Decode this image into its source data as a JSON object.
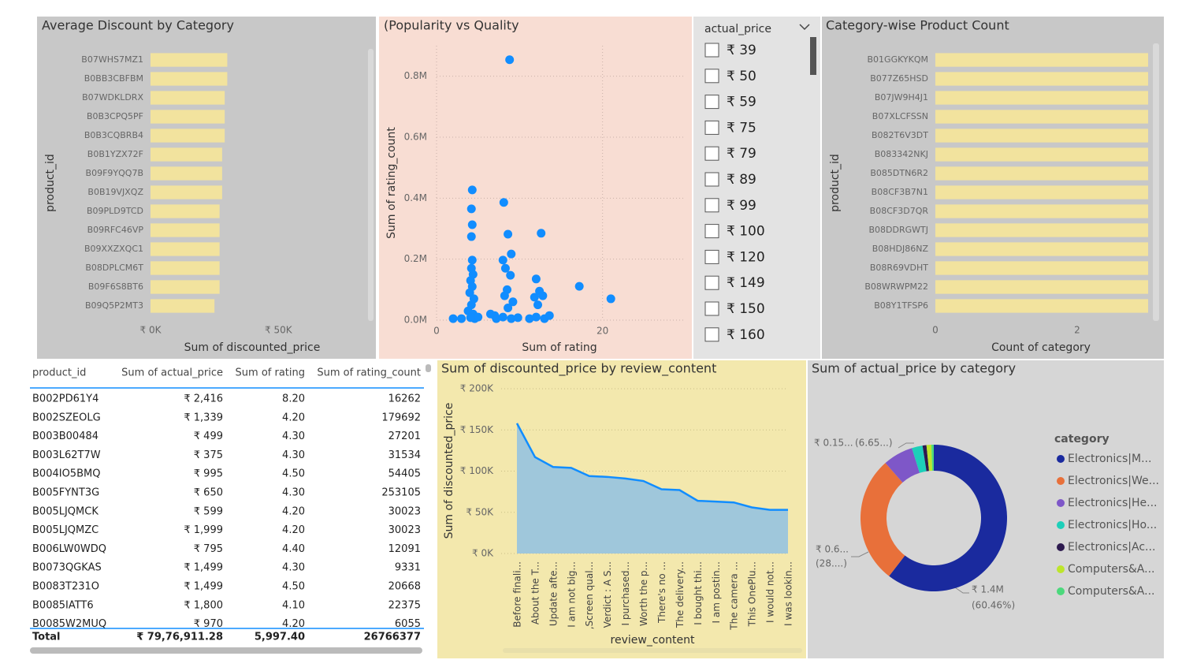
{
  "chart_data": [
    {
      "type": "bar",
      "orientation": "horizontal",
      "title": "Average Discount by Category",
      "categories": [
        "B07WHS7MZ1",
        "B0BB3CBFBM",
        "B07WDKLDRX",
        "B0B3CPQ5PF",
        "B0B3CQBRB4",
        "B0B1YZX72F",
        "B09F9YQQ7B",
        "B0B19VJXQZ",
        "B09PLD9TCD",
        "B09RFC46VP",
        "B09XXZXQC1",
        "B08DPLCM6T",
        "B09F6S8BT6",
        "B09Q5P2MT3"
      ],
      "values": [
        30000,
        30000,
        29000,
        29000,
        29000,
        28000,
        28000,
        28000,
        27000,
        27000,
        27000,
        27000,
        27000,
        25000
      ],
      "color": "#f2e39e",
      "xlim": [
        0,
        85000
      ],
      "xticks": [
        {
          "value": 0,
          "label": "₹ 0K"
        },
        {
          "value": 50000,
          "label": "₹ 50K"
        }
      ],
      "xlabel": "Sum of discounted_price",
      "ylabel": "product_id",
      "grid": false
    },
    {
      "type": "scatter",
      "title": "(Popularity vs Quality",
      "x": [
        8.8,
        4.3,
        4.2,
        8.1,
        4.3,
        8.6,
        12.6,
        4.2,
        9.0,
        8.0,
        4.3,
        17.2,
        21.0,
        12.0,
        8.9,
        4.2,
        4.4,
        4.1,
        8.3,
        12.4,
        12.8,
        11.8,
        8.5,
        8.2,
        4.3,
        4.0,
        4.5,
        4.2,
        3.8,
        4.4,
        2.0,
        3.0,
        4.6,
        5.0,
        4.1,
        7.2,
        8.0,
        9.0,
        9.8,
        8.6,
        9.2,
        7.0,
        11.2,
        12.0,
        13.0,
        13.6,
        12.2,
        6.5
      ],
      "values": [
        854000,
        427000,
        365000,
        386000,
        313000,
        282000,
        285000,
        274000,
        217000,
        197000,
        197000,
        111000,
        70000,
        135000,
        147000,
        170000,
        150000,
        130000,
        170000,
        95000,
        80000,
        75000,
        100000,
        80000,
        110000,
        90000,
        70000,
        50000,
        30000,
        20000,
        5000,
        5000,
        5000,
        10000,
        8000,
        5000,
        10000,
        5000,
        8000,
        40000,
        60000,
        15000,
        5000,
        10000,
        5000,
        15000,
        50000,
        20000
      ],
      "color": "#118dff",
      "xlim": [
        0,
        30
      ],
      "xticks": [
        0,
        20
      ],
      "ylim": [
        0,
        900000
      ],
      "yticks": [
        {
          "value": 0,
          "label": "0.0M"
        },
        {
          "value": 200000,
          "label": "0.2M"
        },
        {
          "value": 400000,
          "label": "0.4M"
        },
        {
          "value": 600000,
          "label": "0.6M"
        },
        {
          "value": 800000,
          "label": "0.8M"
        }
      ],
      "xlabel": "Sum of rating",
      "ylabel": "Sum of rating_count",
      "grid": true
    },
    {
      "type": "bar",
      "orientation": "horizontal",
      "title": "Category-wise Product Count",
      "categories": [
        "B01GGKYKQM",
        "B077Z65HSD",
        "B07JW9H4J1",
        "B07XLCFSSN",
        "B082T6V3DT",
        "B083342NKJ",
        "B085DTN6R2",
        "B08CF3B7N1",
        "B08CF3D7QR",
        "B08DDRGWTJ",
        "B08HDJ86NZ",
        "B08R69VDHT",
        "B08WRWPM22",
        "B08Y1TFSP6"
      ],
      "values": [
        3,
        3,
        3,
        3,
        3,
        3,
        3,
        3,
        3,
        3,
        3,
        3,
        3,
        3
      ],
      "color": "#f2e39e",
      "xlim": [
        0,
        3
      ],
      "xticks": [
        0,
        2
      ],
      "xlabel": "Count of category",
      "ylabel": "product_id",
      "grid": false
    },
    {
      "type": "area",
      "title": "Sum of discounted_price by review_content",
      "categories": [
        "Before finali...",
        "About the T...",
        "Update afte...",
        "I am not big...",
        ",Screen qual...",
        "Verdict : A S...",
        "I purchased...",
        "Worth the p...",
        "There's no ...",
        "The delivery...",
        "I bought thi...",
        "I am postin...",
        "The camera ...",
        "This OnePlu...",
        "I would not...",
        "I was lookin..."
      ],
      "values": [
        158000,
        117000,
        105000,
        104000,
        94000,
        93000,
        91000,
        88000,
        78000,
        77000,
        64000,
        63000,
        62000,
        56000,
        53000,
        53000
      ],
      "color": "#118dff",
      "fill_color": "#9fc7db",
      "ylim": [
        0,
        200000
      ],
      "yticks": [
        {
          "value": 0,
          "label": "₹ 0K"
        },
        {
          "value": 50000,
          "label": "₹ 50K"
        },
        {
          "value": 100000,
          "label": "₹ 100K"
        },
        {
          "value": 150000,
          "label": "₹ 150K"
        },
        {
          "value": 200000,
          "label": "₹ 200K"
        }
      ],
      "xlabel": "review_content",
      "ylabel": "Sum of discounted_price",
      "grid": true
    },
    {
      "type": "pie",
      "donut": true,
      "title": "Sum of actual_price by category",
      "legend_title": "category",
      "categories": [
        "Electronics|M...",
        "Electronics|We...",
        "Electronics|He...",
        "Electronics|Ho...",
        "Electronics|Ac...",
        "Computers&A...",
        "Computers&A..."
      ],
      "values": [
        1400000,
        650000,
        154000,
        55000,
        20000,
        25000,
        12000
      ],
      "value_labels": [
        "₹ 1.4M",
        "₹ 0.6...",
        "₹ 0.15...",
        null,
        null,
        null,
        null
      ],
      "percent_labels": [
        "(60.46%)",
        "(28....)",
        "(6.65...)",
        null,
        null,
        null,
        null
      ],
      "colors": [
        "#1a2a9e",
        "#e8703a",
        "#7e57c8",
        "#1dcfb9",
        "#2d1a4f",
        "#bde52c",
        "#4cd97c"
      ]
    }
  ],
  "slicer": {
    "title": "actual_price",
    "items": [
      "₹ 39",
      "₹ 50",
      "₹ 59",
      "₹ 75",
      "₹ 79",
      "₹ 89",
      "₹ 99",
      "₹ 100",
      "₹ 120",
      "₹ 149",
      "₹ 150",
      "₹ 160"
    ]
  },
  "table": {
    "columns": [
      "product_id",
      "Sum of actual_price",
      "Sum of rating",
      "Sum of rating_count"
    ],
    "rows": [
      [
        "B002PD61Y4",
        "₹ 2,416",
        "8.20",
        "16262"
      ],
      [
        "B002SZEOLG",
        "₹ 1,339",
        "4.20",
        "179692"
      ],
      [
        "B003B00484",
        "₹ 499",
        "4.30",
        "27201"
      ],
      [
        "B003L62T7W",
        "₹ 375",
        "4.30",
        "31534"
      ],
      [
        "B004IO5BMQ",
        "₹ 995",
        "4.50",
        "54405"
      ],
      [
        "B005FYNT3G",
        "₹ 650",
        "4.30",
        "253105"
      ],
      [
        "B005LJQMCK",
        "₹ 599",
        "4.20",
        "30023"
      ],
      [
        "B005LJQMZC",
        "₹ 1,999",
        "4.20",
        "30023"
      ],
      [
        "B006LW0WDQ",
        "₹ 795",
        "4.40",
        "12091"
      ],
      [
        "B0073QGKAS",
        "₹ 1,499",
        "4.30",
        "9331"
      ],
      [
        "B0083T231O",
        "₹ 1,499",
        "4.50",
        "20668"
      ],
      [
        "B0085IATT6",
        "₹ 1,800",
        "4.10",
        "22375"
      ],
      [
        "B0085W2MUQ",
        "₹ 970",
        "4.20",
        "6055"
      ]
    ],
    "total": [
      "Total",
      "₹ 79,76,911.28",
      "5,997.40",
      "26766377"
    ]
  }
}
